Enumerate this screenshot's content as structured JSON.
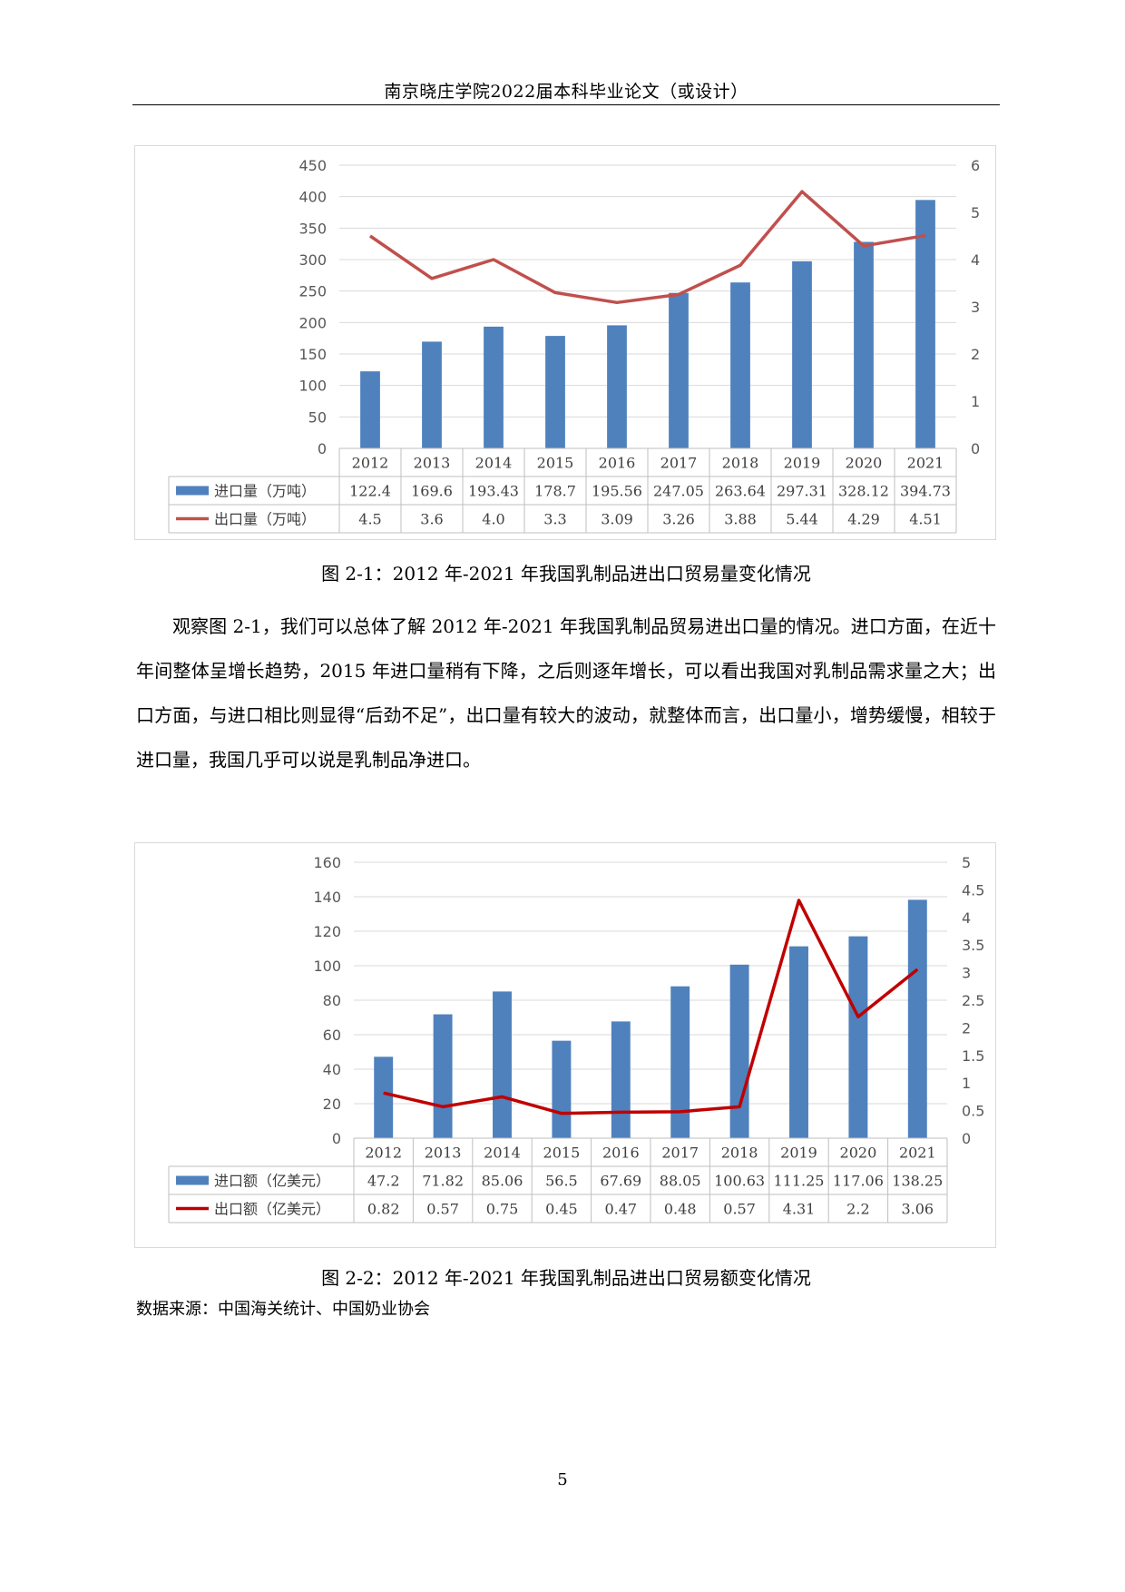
{
  "header": {
    "title": "南京晓庄学院2022届本科毕业论文（或设计）"
  },
  "chart_data": [
    {
      "type": "bar",
      "categories": [
        "2012",
        "2013",
        "2014",
        "2015",
        "2016",
        "2017",
        "2018",
        "2019",
        "2020",
        "2021"
      ],
      "series": [
        {
          "name": "进口量（万吨）",
          "kind": "bar",
          "axis": "left",
          "values": [
            122.4,
            169.6,
            193.43,
            178.7,
            195.56,
            247.05,
            263.64,
            297.31,
            328.12,
            394.73
          ],
          "labels": [
            "122.4",
            "169.6",
            "193.43",
            "178.7",
            "195.56",
            "247.05",
            "263.64",
            "297.31",
            "328.12",
            "394.73"
          ]
        },
        {
          "name": "出口量（万吨）",
          "kind": "line",
          "axis": "right",
          "values": [
            4.5,
            3.6,
            4.0,
            3.3,
            3.09,
            3.26,
            3.88,
            5.44,
            4.29,
            4.51
          ],
          "labels": [
            "4.5",
            "3.6",
            "4.0",
            "3.3",
            "3.09",
            "3.26",
            "3.88",
            "5.44",
            "4.29",
            "4.51"
          ]
        }
      ],
      "y_left": {
        "range": [
          0,
          450
        ],
        "ticks": [
          "0",
          "50",
          "100",
          "150",
          "200",
          "250",
          "300",
          "350",
          "400",
          "450"
        ]
      },
      "y_right": {
        "range": [
          0,
          6
        ],
        "ticks": [
          "0",
          "1",
          "2",
          "3",
          "4",
          "5",
          "6"
        ]
      },
      "colors": {
        "bar": "#4f81bd",
        "line": "#c0504d"
      },
      "caption": "图 2-1：2012 年-2021 年我国乳制品进出口贸易量变化情况"
    },
    {
      "type": "bar",
      "categories": [
        "2012",
        "2013",
        "2014",
        "2015",
        "2016",
        "2017",
        "2018",
        "2019",
        "2020",
        "2021"
      ],
      "series": [
        {
          "name": "进口额（亿美元）",
          "kind": "bar",
          "axis": "left",
          "values": [
            47.2,
            71.82,
            85.06,
            56.5,
            67.69,
            88.05,
            100.63,
            111.25,
            117.06,
            138.25
          ],
          "labels": [
            "47.2",
            "71.82",
            "85.06",
            "56.5",
            "67.69",
            "88.05",
            "100.63",
            "111.25",
            "117.06",
            "138.25"
          ]
        },
        {
          "name": "出口额（亿美元）",
          "kind": "line",
          "axis": "right",
          "values": [
            0.82,
            0.57,
            0.75,
            0.45,
            0.47,
            0.48,
            0.57,
            4.31,
            2.2,
            3.06
          ],
          "labels": [
            "0.82",
            "0.57",
            "0.75",
            "0.45",
            "0.47",
            "0.48",
            "0.57",
            "4.31",
            "2.2",
            "3.06"
          ]
        }
      ],
      "y_left": {
        "range": [
          0,
          160
        ],
        "ticks": [
          "0",
          "20",
          "40",
          "60",
          "80",
          "100",
          "120",
          "140",
          "160"
        ]
      },
      "y_right": {
        "range": [
          0,
          5
        ],
        "ticks": [
          "0",
          "0.5",
          "1",
          "1.5",
          "2",
          "2.5",
          "3",
          "3.5",
          "4",
          "4.5",
          "5"
        ]
      },
      "colors": {
        "bar": "#4f81bd",
        "line": "#c00000"
      },
      "caption": "图 2-2：2012 年-2021 年我国乳制品进出口贸易额变化情况"
    }
  ],
  "body": {
    "paragraph": "观察图 2-1，我们可以总体了解 2012 年-2021 年我国乳制品贸易进出口量的情况。进口方面，在近十年间整体呈增长趋势，2015 年进口量稍有下降，之后则逐年增长，可以看出我国对乳制品需求量之大；出口方面，与进口相比则显得“后劲不足”，出口量有较大的波动，就整体而言，出口量小，增势缓慢，相较于进口量，我国几乎可以说是乳制品净进口。"
  },
  "source": "数据来源：中国海关统计、中国奶业协会",
  "page_number": "5"
}
